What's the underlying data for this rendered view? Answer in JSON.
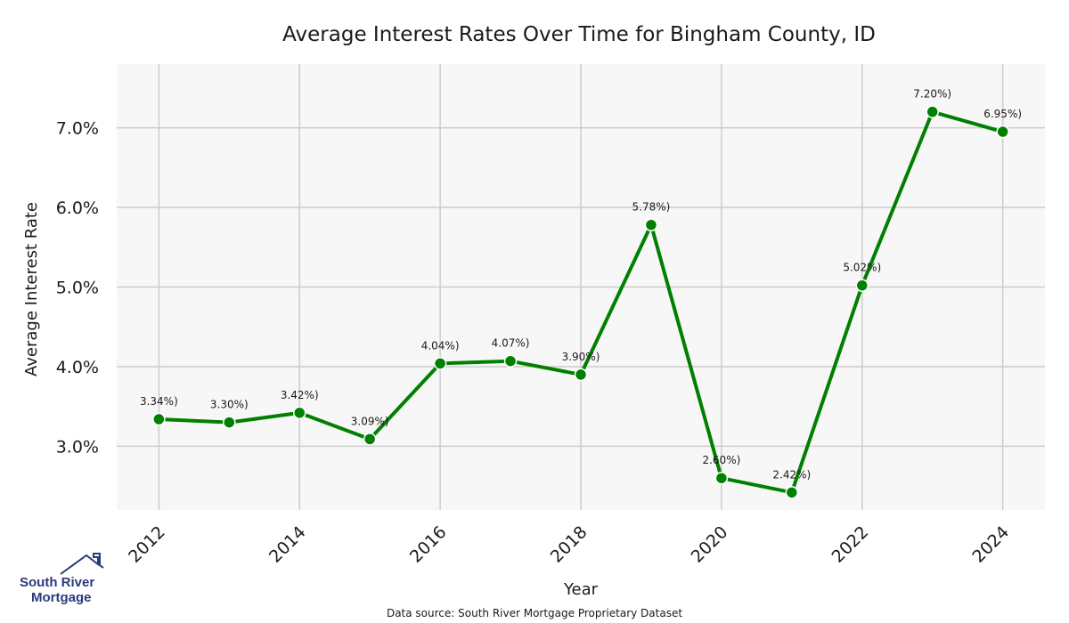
{
  "chart_data": {
    "type": "line",
    "title": "Average Interest Rates Over Time for Bingham County, ID",
    "xlabel": "Year",
    "ylabel": "Average Interest Rate",
    "x": [
      2012,
      2013,
      2014,
      2015,
      2016,
      2017,
      2018,
      2019,
      2020,
      2021,
      2022,
      2023,
      2024
    ],
    "series": [
      {
        "values": [
          3.34,
          3.3,
          3.42,
          3.09,
          4.04,
          4.07,
          3.9,
          5.78,
          2.6,
          2.42,
          5.02,
          7.2,
          6.95
        ],
        "labels": [
          "3.34%)",
          "3.30%)",
          "3.42%)",
          "3.09%)",
          "4.04%)",
          "4.07%)",
          "3.90%)",
          "5.78%)",
          "2.60%)",
          "2.42%)",
          "5.02%)",
          "7.20%)",
          "6.95%)"
        ],
        "color": "#008000"
      }
    ],
    "xticks": [
      "2012",
      "2014",
      "2016",
      "2018",
      "2020",
      "2022",
      "2024"
    ],
    "yticks": [
      "3.0%",
      "4.0%",
      "5.0%",
      "6.0%",
      "7.0%"
    ],
    "ytick_values": [
      3.0,
      4.0,
      5.0,
      6.0,
      7.0
    ],
    "grid": true,
    "plot_background": "#f7f7f7",
    "grid_color": "#cccccc"
  },
  "source_note": "Data source: South River Mortgage Proprietary Dataset",
  "logo": {
    "line1": "South River",
    "line2": "Mortgage",
    "color": "#2b3a7a"
  }
}
